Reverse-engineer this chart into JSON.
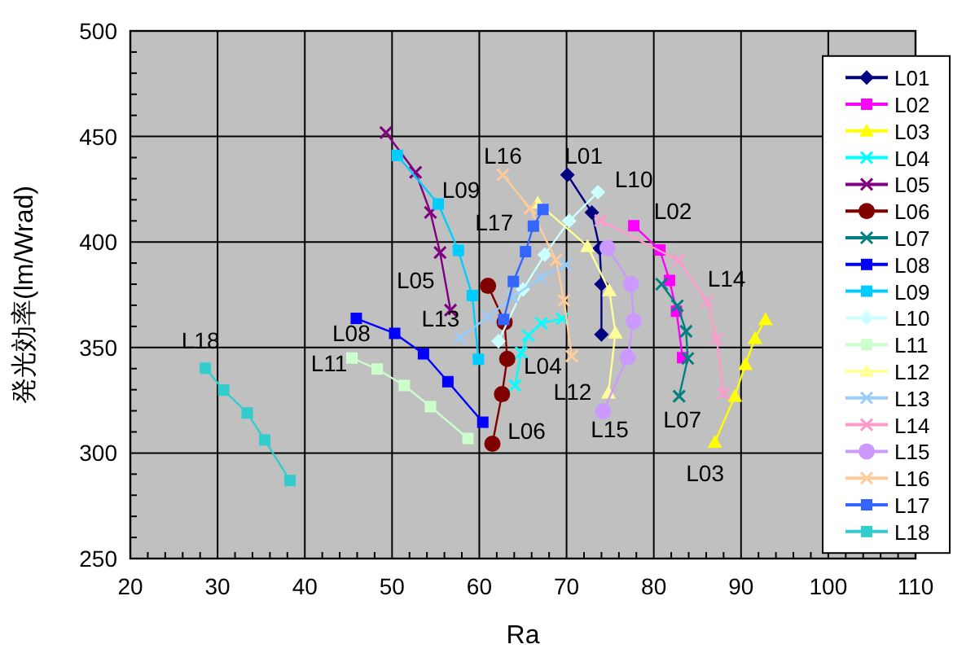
{
  "chart_data": {
    "type": "line",
    "xlabel": "Ra",
    "ylabel": "発光効率(lm/Wrad)",
    "xlim": [
      20,
      110
    ],
    "ylim": [
      250,
      500
    ],
    "xticks": [
      20,
      30,
      40,
      50,
      60,
      70,
      80,
      90,
      100,
      110
    ],
    "yticks": [
      250,
      300,
      350,
      400,
      450,
      500
    ],
    "grid": true,
    "legend": "right",
    "line_style": "solid",
    "series": [
      {
        "name": "L01",
        "color": "#000080",
        "marker": "diamond",
        "x": [
          70.1,
          72.9,
          73.8,
          74.0,
          74.0
        ],
        "values": [
          431.8,
          414,
          397,
          380,
          356.2
        ]
      },
      {
        "name": "L02",
        "color": "#ff00ff",
        "marker": "square",
        "x": [
          77.7,
          80.7,
          81.8,
          82.6,
          83.3
        ],
        "values": [
          407.7,
          396.2,
          381.8,
          367.2,
          345.2
        ]
      },
      {
        "name": "L03",
        "color": "#ffff00",
        "marker": "triangle",
        "x": [
          87.0,
          89.3,
          90.5,
          91.6,
          92.8
        ],
        "values": [
          305.2,
          327,
          342,
          354.4,
          363.3
        ]
      },
      {
        "name": "L04",
        "color": "#00ffff",
        "marker": "cross",
        "x": [
          64.1,
          64.8,
          65.6,
          67.1,
          69.5
        ],
        "values": [
          332,
          347.5,
          355.6,
          361.5,
          363.6
        ]
      },
      {
        "name": "L05",
        "color": "#800080",
        "marker": "cross",
        "x": [
          49.3,
          52.7,
          54.4,
          55.5,
          56.7
        ],
        "values": [
          451.8,
          433,
          414,
          395,
          367.7
        ]
      },
      {
        "name": "L06",
        "color": "#800000",
        "marker": "circle",
        "x": [
          61.0,
          62.9,
          63.2,
          62.6,
          61.5
        ],
        "values": [
          379.2,
          362,
          344.6,
          327.9,
          304.4
        ]
      },
      {
        "name": "L07",
        "color": "#008080",
        "marker": "cross",
        "x": [
          80.9,
          82.7,
          83.7,
          83.9,
          82.9
        ],
        "values": [
          380,
          369.8,
          357.7,
          344.8,
          326.9
        ]
      },
      {
        "name": "L08",
        "color": "#0000ff",
        "marker": "square",
        "x": [
          45.9,
          50.3,
          53.6,
          56.4,
          60.4
        ],
        "values": [
          363.8,
          356.7,
          347,
          333.8,
          314.6
        ]
      },
      {
        "name": "L09",
        "color": "#00ccff",
        "marker": "square",
        "x": [
          50.6,
          55.3,
          57.6,
          59.2,
          59.9
        ],
        "values": [
          441,
          418,
          396,
          374.6,
          344.4
        ]
      },
      {
        "name": "L10",
        "color": "#ccffff",
        "marker": "diamond",
        "x": [
          73.6,
          70.3,
          67.5,
          65.0,
          62.2
        ],
        "values": [
          423.6,
          410,
          394,
          377.5,
          353
        ]
      },
      {
        "name": "L11",
        "color": "#ccffcc",
        "marker": "square",
        "x": [
          45.4,
          48.3,
          51.4,
          54.4,
          58.7
        ],
        "values": [
          345,
          339.8,
          332,
          322,
          306.9
        ]
      },
      {
        "name": "L12",
        "color": "#ffff99",
        "marker": "triangle",
        "x": [
          66.7,
          72.4,
          74.9,
          75.6,
          74.8
        ],
        "values": [
          418.5,
          398,
          377,
          357,
          328.5
        ]
      },
      {
        "name": "L13",
        "color": "#99ccff",
        "marker": "cross",
        "x": [
          57.8,
          61.0,
          63.8,
          67.0,
          69.9
        ],
        "values": [
          354.6,
          364.6,
          373.8,
          383,
          389.2
        ]
      },
      {
        "name": "L14",
        "color": "#ff99cc",
        "marker": "cross",
        "x": [
          73.9,
          82.8,
          86.1,
          87.2,
          88.0
        ],
        "values": [
          410.2,
          391.3,
          372,
          354,
          328.2
        ]
      },
      {
        "name": "L15",
        "color": "#cc99ff",
        "marker": "circle",
        "x": [
          74.7,
          77.4,
          77.7,
          77.0,
          74.2
        ],
        "values": [
          397.2,
          380,
          362.5,
          345.4,
          319.8
        ]
      },
      {
        "name": "L16",
        "color": "#ffcc99",
        "marker": "cross",
        "x": [
          62.7,
          65.8,
          68.8,
          69.7,
          70.6
        ],
        "values": [
          431.8,
          416,
          391.5,
          372.3,
          345.9
        ]
      },
      {
        "name": "L17",
        "color": "#3366ff",
        "marker": "square",
        "x": [
          67.3,
          66.2,
          65.3,
          63.9,
          62.8
        ],
        "values": [
          415.4,
          407.5,
          395.4,
          381.3,
          363.3
        ]
      },
      {
        "name": "L18",
        "color": "#33cccc",
        "marker": "square",
        "x": [
          28.6,
          30.7,
          33.4,
          35.4,
          38.3
        ],
        "values": [
          340.2,
          329.8,
          319,
          306.2,
          287
        ]
      }
    ],
    "annotations": [
      {
        "text": "L01",
        "x": 70.1,
        "y": 431.8
      },
      {
        "text": "L10",
        "x": 73.6,
        "y": 423.6
      },
      {
        "text": "L02",
        "x": 77.7,
        "y": 407.7
      },
      {
        "text": "L14",
        "x": 86.1,
        "y": 372
      },
      {
        "text": "L07",
        "x": 82.9,
        "y": 326.9
      },
      {
        "text": "L03",
        "x": 87.0,
        "y": 305.2
      },
      {
        "text": "L15",
        "x": 74.2,
        "y": 319.8
      },
      {
        "text": "L12",
        "x": 74.8,
        "y": 328.5
      },
      {
        "text": "L16",
        "x": 62.7,
        "y": 431.8
      },
      {
        "text": "L17",
        "x": 67.3,
        "y": 415.4
      },
      {
        "text": "L09",
        "x": 55.3,
        "y": 418
      },
      {
        "text": "L05",
        "x": 55.5,
        "y": 395
      },
      {
        "text": "L13",
        "x": 57.8,
        "y": 354.6
      },
      {
        "text": "L08",
        "x": 45.9,
        "y": 363.8
      },
      {
        "text": "L11",
        "x": 45.4,
        "y": 345
      },
      {
        "text": "L04",
        "x": 64.1,
        "y": 332
      },
      {
        "text": "L06",
        "x": 61.5,
        "y": 304.4
      },
      {
        "text": "L18",
        "x": 28.6,
        "y": 340.2
      }
    ]
  }
}
